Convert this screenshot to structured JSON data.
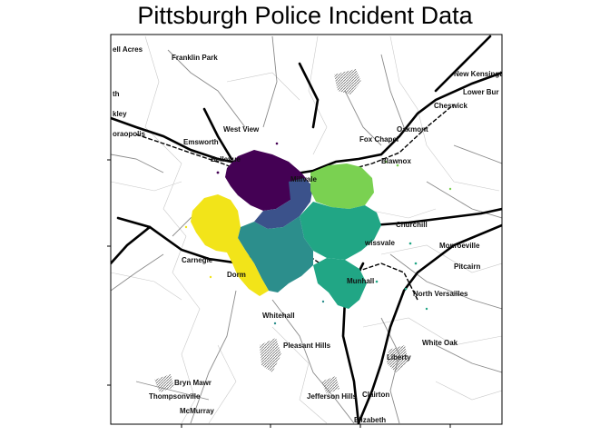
{
  "title": "Pittsburgh Police Incident Data",
  "map": {
    "place_labels": [
      {
        "id": "bell-acres",
        "text": "ell Acres"
      },
      {
        "id": "franklin-park",
        "text": "Franklin Park"
      },
      {
        "id": "new-kensington",
        "text": "New Kensingt"
      },
      {
        "id": "lower-burrell",
        "text": "Lower Bur"
      },
      {
        "id": "cheswick",
        "text": "Cheswick"
      },
      {
        "id": "th",
        "text": "th"
      },
      {
        "id": "kley",
        "text": "kley"
      },
      {
        "id": "oraopolis",
        "text": "oraopolis"
      },
      {
        "id": "west-view",
        "text": "West View"
      },
      {
        "id": "oakmont",
        "text": "Oakmont"
      },
      {
        "id": "fox-chapel",
        "text": "Fox Chapel"
      },
      {
        "id": "emsworth",
        "text": "Emsworth"
      },
      {
        "id": "bellevue",
        "text": "Bellevue"
      },
      {
        "id": "blawnox",
        "text": "Blawnox"
      },
      {
        "id": "millvale",
        "text": "Millvale"
      },
      {
        "id": "churchill",
        "text": "Churchill"
      },
      {
        "id": "wissvale",
        "text": "wissvale"
      },
      {
        "id": "monroeville",
        "text": "Monroeville"
      },
      {
        "id": "carnegie",
        "text": "Carnegie"
      },
      {
        "id": "pitcairn",
        "text": "Pitcairn"
      },
      {
        "id": "dorm",
        "text": "Dorm"
      },
      {
        "id": "munhall",
        "text": "Munhall"
      },
      {
        "id": "north-versailles",
        "text": "North Versailles"
      },
      {
        "id": "whitehall",
        "text": "Whitehall"
      },
      {
        "id": "white-oak",
        "text": "White Oak"
      },
      {
        "id": "pleasant-hills",
        "text": "Pleasant Hills"
      },
      {
        "id": "liberty",
        "text": "Liberty"
      },
      {
        "id": "bryn-mawr",
        "text": "Bryn Mawr"
      },
      {
        "id": "thompsonville",
        "text": "Thompsonville"
      },
      {
        "id": "jefferson-hills",
        "text": "Jefferson Hills"
      },
      {
        "id": "clairton",
        "text": "Clairton"
      },
      {
        "id": "mcmurray",
        "text": "McMurray"
      },
      {
        "id": "elizabeth",
        "text": "Elizabeth"
      }
    ],
    "incident_clusters": [
      {
        "id": "north",
        "color": "#440154"
      },
      {
        "id": "central",
        "color": "#3b528b"
      },
      {
        "id": "northeast",
        "color": "#7ad151"
      },
      {
        "id": "east",
        "color": "#21a685"
      },
      {
        "id": "south",
        "color": "#2c8e8c"
      },
      {
        "id": "west",
        "color": "#f2e419"
      }
    ]
  }
}
